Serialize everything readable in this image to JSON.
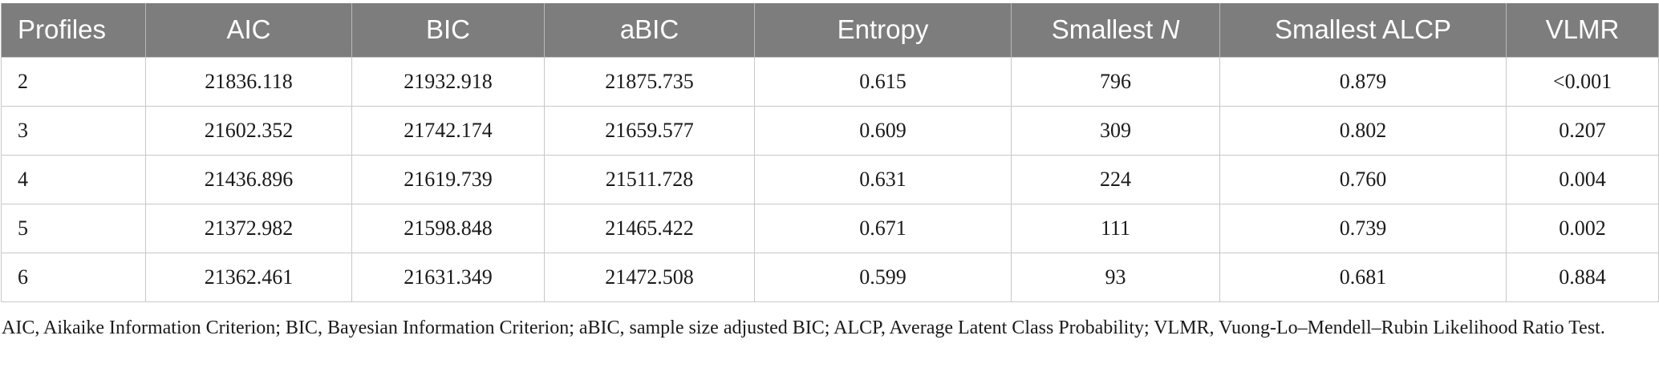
{
  "table": {
    "headers": [
      {
        "text": "Profiles",
        "italic_suffix": ""
      },
      {
        "text": "AIC",
        "italic_suffix": ""
      },
      {
        "text": "BIC",
        "italic_suffix": ""
      },
      {
        "text": "aBIC",
        "italic_suffix": ""
      },
      {
        "text": "Entropy",
        "italic_suffix": ""
      },
      {
        "text": "Smallest ",
        "italic_suffix": "N"
      },
      {
        "text": "Smallest ALCP",
        "italic_suffix": ""
      },
      {
        "text": "VLMR",
        "italic_suffix": ""
      }
    ],
    "rows": [
      [
        "2",
        "21836.118",
        "21932.918",
        "21875.735",
        "0.615",
        "796",
        "0.879",
        "<0.001"
      ],
      [
        "3",
        "21602.352",
        "21742.174",
        "21659.577",
        "0.609",
        "309",
        "0.802",
        "0.207"
      ],
      [
        "4",
        "21436.896",
        "21619.739",
        "21511.728",
        "0.631",
        "224",
        "0.760",
        "0.004"
      ],
      [
        "5",
        "21372.982",
        "21598.848",
        "21465.422",
        "0.671",
        "111",
        "0.739",
        "0.002"
      ],
      [
        "6",
        "21362.461",
        "21631.349",
        "21472.508",
        "0.599",
        "93",
        "0.681",
        "0.884"
      ]
    ]
  },
  "footnote": "AIC, Aikaike Information Criterion; BIC, Bayesian Information Criterion; aBIC, sample size adjusted BIC; ALCP, Average Latent Class Probability; VLMR, Vuong-Lo–Mendell–Rubin Likelihood Ratio Test.",
  "colors": {
    "header_background": "#7d7d7d",
    "header_text": "#ffffff",
    "grid_line": "#c8c8c8"
  }
}
